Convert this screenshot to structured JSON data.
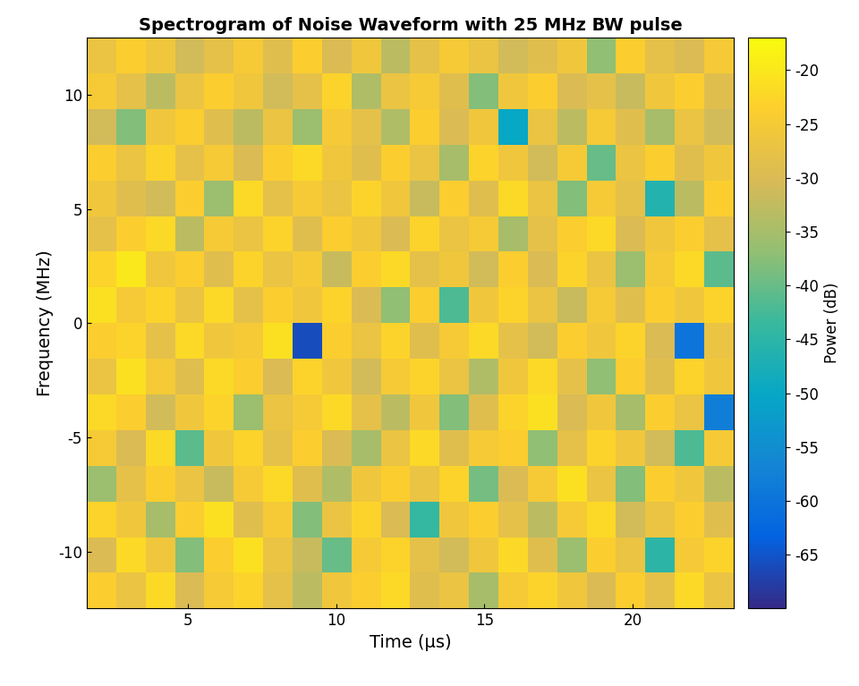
{
  "chart_data": {
    "type": "heatmap",
    "title": "Spectrogram of Noise Waveform with 25 MHz BW pulse",
    "x_label": "Time (μs)",
    "y_label": "Frequency (MHz)",
    "xlim": [
      1.6,
      23.4
    ],
    "xticks": [
      5,
      10,
      15,
      20
    ],
    "ylim": [
      -12.5,
      12.5
    ],
    "yticks": [
      -10,
      -5,
      0,
      5,
      10
    ],
    "cells": [
      [
        -24,
        -27,
        -22,
        -30,
        -25,
        -23,
        -28,
        -33,
        -26,
        -24,
        -22,
        -29,
        -27,
        -35,
        -25,
        -23,
        -26,
        -30,
        -24,
        -28,
        -22,
        -27
      ],
      [
        -30,
        -22,
        -26,
        -38,
        -24,
        -21,
        -27,
        -32,
        -40,
        -25,
        -23,
        -28,
        -31,
        -26,
        -22,
        -29,
        -36,
        -24,
        -27,
        -45,
        -25,
        -23
      ],
      [
        -23,
        -26,
        -35,
        -24,
        -21,
        -29,
        -25,
        -38,
        -27,
        -23,
        -30,
        -44,
        -26,
        -24,
        -28,
        -33,
        -25,
        -22,
        -31,
        -27,
        -24,
        -29
      ],
      [
        -36,
        -28,
        -24,
        -27,
        -32,
        -25,
        -22,
        -29,
        -34,
        -26,
        -24,
        -27,
        -23,
        -39,
        -30,
        -25,
        -21,
        -27,
        -38,
        -24,
        -26,
        -33
      ],
      [
        -25,
        -30,
        -22,
        -41,
        -26,
        -23,
        -28,
        -24,
        -30,
        -35,
        -27,
        -22,
        -29,
        -25,
        -24,
        -37,
        -28,
        -23,
        -26,
        -31,
        -42,
        -25
      ],
      [
        -22,
        -24,
        -31,
        -26,
        -23,
        -36,
        -27,
        -25,
        -22,
        -28,
        -33,
        -26,
        -38,
        -29,
        -23,
        -21,
        -30,
        -26,
        -35,
        -24,
        -27,
        -58
      ],
      [
        -27,
        -21,
        -25,
        -29,
        -22,
        -24,
        -30,
        -23,
        -26,
        -31,
        -25,
        -23,
        -27,
        -34,
        -26,
        -22,
        -28,
        -37,
        -24,
        -29,
        -23,
        -26
      ],
      [
        -24,
        -23,
        -28,
        -22,
        -26,
        -25,
        -21,
        -66,
        -24,
        -27,
        -23,
        -29,
        -25,
        -22,
        -28,
        -31,
        -24,
        -26,
        -23,
        -30,
        -60,
        -27
      ],
      [
        -21,
        -25,
        -23,
        -27,
        -22,
        -28,
        -24,
        -26,
        -23,
        -30,
        -37,
        -24,
        -42,
        -26,
        -23,
        -27,
        -32,
        -25,
        -29,
        -24,
        -26,
        -23
      ],
      [
        -23,
        -20,
        -26,
        -24,
        -29,
        -23,
        -27,
        -25,
        -32,
        -24,
        -22,
        -28,
        -26,
        -31,
        -24,
        -30,
        -23,
        -27,
        -36,
        -25,
        -22,
        -41
      ],
      [
        -28,
        -24,
        -22,
        -33,
        -25,
        -27,
        -23,
        -29,
        -24,
        -26,
        -30,
        -23,
        -27,
        -25,
        -35,
        -28,
        -24,
        -22,
        -30,
        -26,
        -24,
        -28
      ],
      [
        -26,
        -29,
        -31,
        -24,
        -36,
        -22,
        -28,
        -25,
        -27,
        -23,
        -26,
        -32,
        -24,
        -29,
        -22,
        -27,
        -38,
        -25,
        -28,
        -46,
        -33,
        -24
      ],
      [
        -24,
        -27,
        -23,
        -28,
        -25,
        -30,
        -24,
        -22,
        -26,
        -29,
        -24,
        -27,
        -35,
        -23,
        -26,
        -31,
        -25,
        -40,
        -27,
        -24,
        -29,
        -26
      ],
      [
        -31,
        -38,
        -26,
        -24,
        -29,
        -33,
        -27,
        -36,
        -25,
        -28,
        -34,
        -24,
        -30,
        -26,
        -50,
        -27,
        -33,
        -25,
        -29,
        -35,
        -27,
        -31
      ],
      [
        -25,
        -28,
        -33,
        -27,
        -24,
        -26,
        -31,
        -28,
        -23,
        -34,
        -27,
        -25,
        -29,
        -38,
        -26,
        -24,
        -30,
        -28,
        -32,
        -26,
        -24,
        -29
      ],
      [
        -27,
        -24,
        -26,
        -31,
        -28,
        -25,
        -29,
        -24,
        -30,
        -26,
        -33,
        -28,
        -25,
        -27,
        -31,
        -29,
        -26,
        -37,
        -24,
        -28,
        -30,
        -25
      ]
    ],
    "colorbar": {
      "label": "Power (dB)",
      "range": [
        -70,
        -17
      ],
      "ticks": [
        -20,
        -25,
        -30,
        -35,
        -40,
        -45,
        -50,
        -55,
        -60,
        -65
      ]
    }
  }
}
